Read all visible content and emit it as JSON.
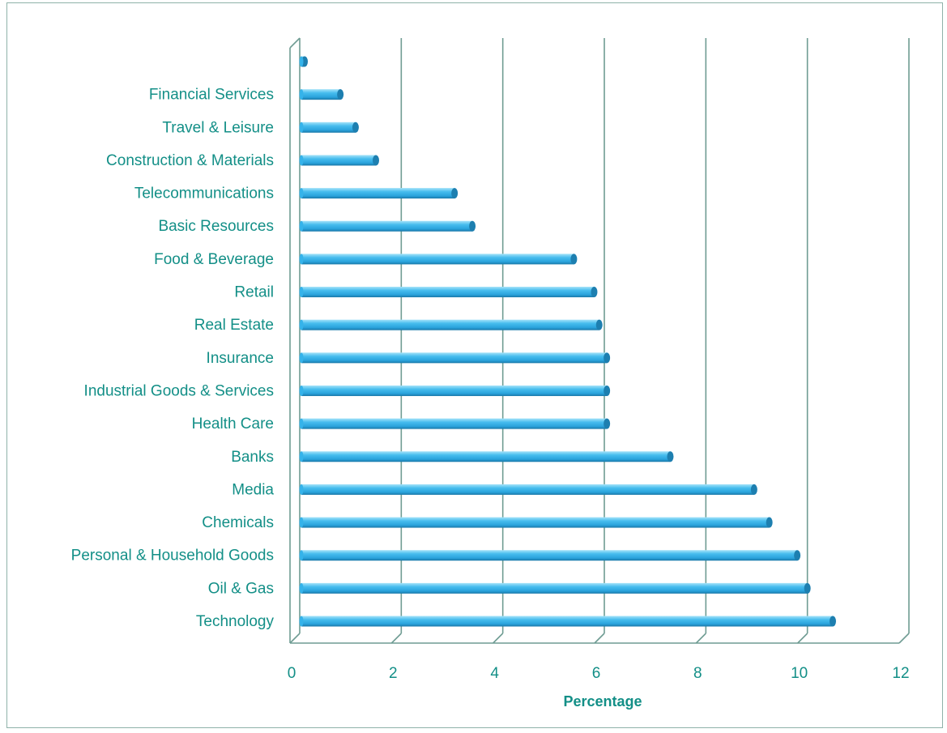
{
  "chart_data": {
    "type": "bar",
    "orientation": "horizontal",
    "categories": [
      "Technology",
      "Oil & Gas",
      "Personal & Household Goods",
      "Chemicals",
      "Media",
      "Banks",
      "Health Care",
      "Industrial Goods & Services",
      "Insurance",
      "Real Estate",
      "Retail",
      "Food & Beverage",
      "Basic Resources",
      "Telecommunications",
      "Construction & Materials",
      "Travel & Leisure",
      "Financial Services",
      ""
    ],
    "values": [
      10.5,
      10.0,
      9.8,
      9.25,
      8.95,
      7.3,
      6.05,
      6.05,
      6.05,
      5.9,
      5.8,
      5.4,
      3.4,
      3.05,
      1.5,
      1.1,
      0.8,
      0.05
    ],
    "xlabel": "Percentage",
    "ylabel": "",
    "xlim": [
      0,
      12
    ],
    "xticks": [
      "0",
      "2",
      "4",
      "6",
      "8",
      "10",
      "12"
    ],
    "grid": "vertical",
    "colors": {
      "bar": "#35b3ea",
      "bar_top": "#9fe0f8",
      "bar_dark": "#1d7fb0",
      "grid": "#6f9c93",
      "text": "#138f87",
      "frame": "#8fb2a9"
    }
  }
}
